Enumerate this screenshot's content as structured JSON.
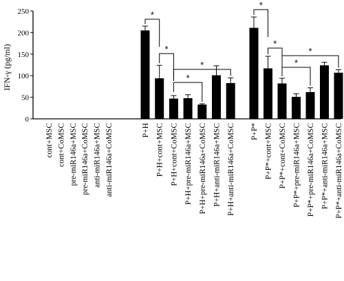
{
  "chart_data": {
    "type": "bar",
    "ylabel": "IFN-γ (pg/ml)",
    "ylim": [
      0,
      250
    ],
    "yticks": [
      0,
      50,
      100,
      150,
      200,
      250
    ],
    "grid": false,
    "legend": "none",
    "bar_color": "#000000",
    "categories": [
      "cont+MSC",
      "cont+CoMSC",
      "pre-miR146a+MSC",
      "pre-miR146a+CoMSC",
      "anti-miR146a+MSC",
      "anti-miR146a+CoMSC",
      "P+H",
      "P+H+cont+MSC",
      "P+H+cont+CoMSC",
      "P+H+pre-miR146a+MSC",
      "P+H+pre-miR146a+CoMSC",
      "P+H+anti-miR146a+MSC",
      "P+H+anti-miR146a+CoMSC",
      "P+P*",
      "P+P*+cont+MSC",
      "P+P*+cont+CoMSC",
      "P+P*+pre-miR146a+MSC",
      "P+P*+pre-miR146a+CoMSC",
      "P+P*+anti-miR146a+MSC",
      "P+P*+anti-miR146a+CoMSC"
    ],
    "values": [
      0,
      0,
      0,
      0,
      0,
      0,
      205,
      94,
      47,
      48,
      33,
      101,
      83,
      211,
      117,
      82,
      51,
      62,
      124,
      107
    ],
    "errors": [
      0,
      0,
      0,
      0,
      0,
      0,
      10,
      30,
      7,
      8,
      2,
      22,
      12,
      25,
      28,
      12,
      7,
      10,
      7,
      7
    ],
    "significance": [
      {
        "from": "P+H",
        "to": "P+H+cont+MSC",
        "label": "*"
      },
      {
        "from": "P+H+cont+MSC",
        "to": "P+H+cont+CoMSC",
        "label": "*"
      },
      {
        "from": "P+H+cont+CoMSC",
        "to": "P+H+pre-miR146a+CoMSC",
        "label": "*"
      },
      {
        "from": "P+H+cont+CoMSC",
        "to": "P+H+anti-miR146a+CoMSC",
        "label": "*"
      },
      {
        "from": "P+P*",
        "to": "P+P*+cont+MSC",
        "label": "*"
      },
      {
        "from": "P+P*+cont+MSC",
        "to": "P+P*+cont+CoMSC",
        "label": "*"
      },
      {
        "from": "P+P*+cont+CoMSC",
        "to": "P+P*+pre-miR146a+CoMSC",
        "label": "*"
      },
      {
        "from": "P+P*+cont+CoMSC",
        "to": "P+P*+anti-miR146a+CoMSC",
        "label": "*"
      }
    ]
  }
}
